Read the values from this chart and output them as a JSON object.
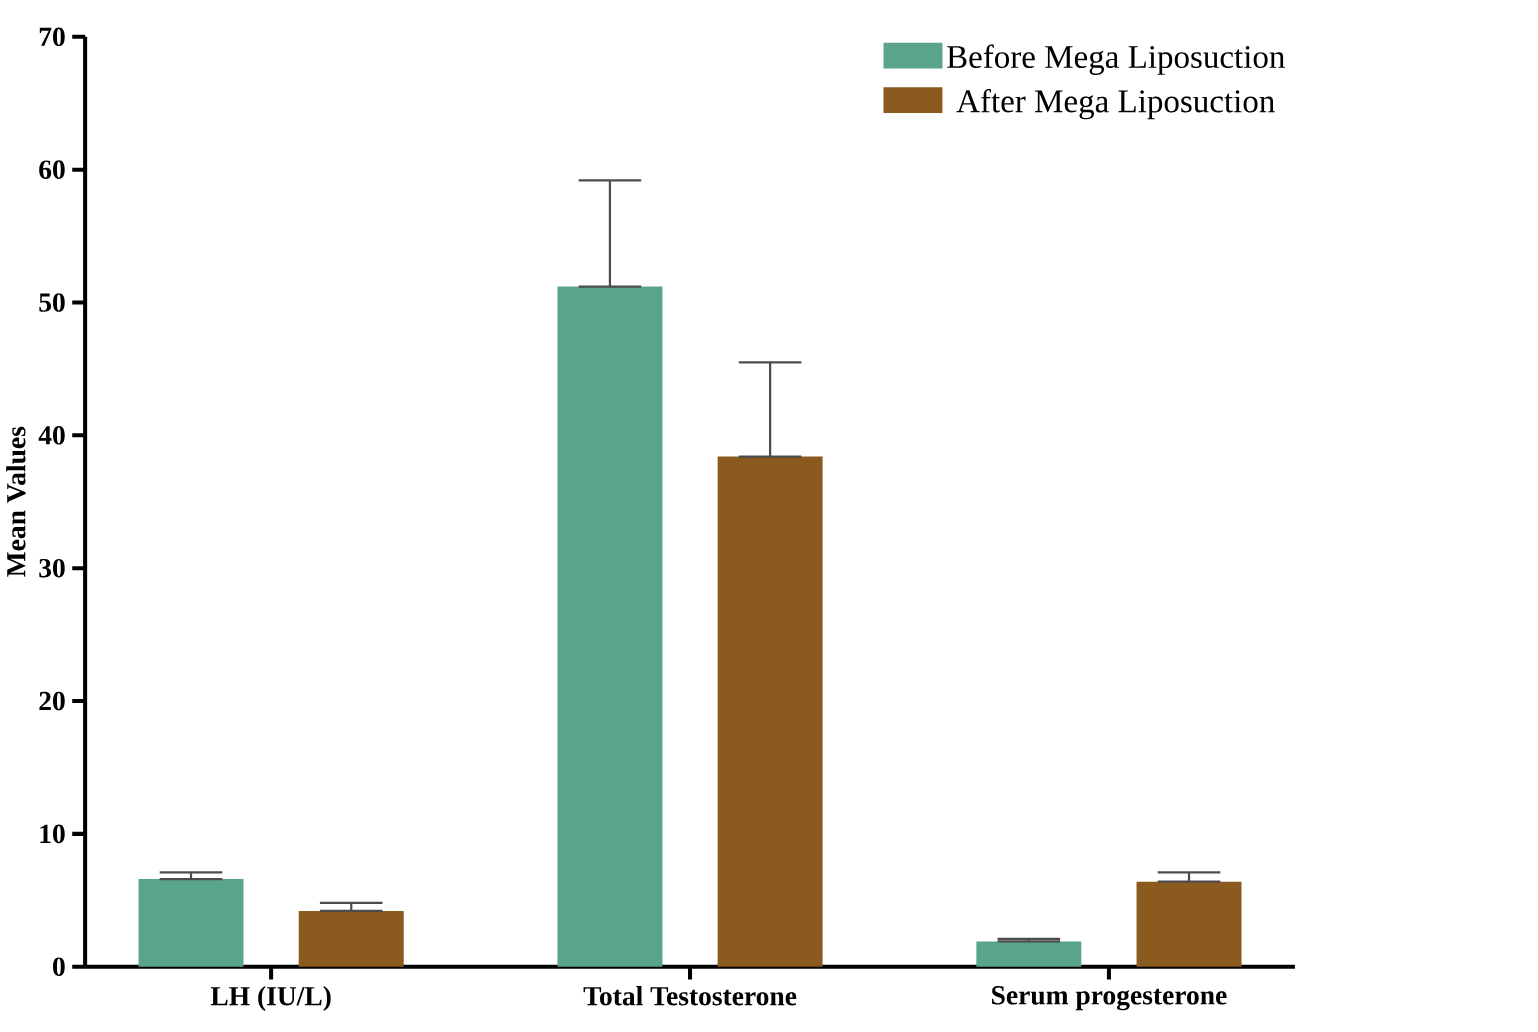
{
  "chart_data": {
    "type": "bar",
    "ylabel": "Mean Values",
    "categories": [
      "LH (IU/L)",
      "Total Testosterone",
      "Serum progesterone"
    ],
    "series": [
      {
        "name": "Before Mega Liposuction",
        "color": "#5aa58a",
        "values": [
          6.6,
          51.2,
          1.9
        ],
        "errors": [
          [
            6.6,
            7.1
          ],
          [
            51.2,
            59.2
          ],
          [
            1.9,
            2.1
          ]
        ]
      },
      {
        "name": "After Mega Liposuction",
        "color": "#8b5a1e",
        "values": [
          4.2,
          38.4,
          6.4
        ],
        "errors": [
          [
            4.2,
            4.8
          ],
          [
            38.4,
            45.5
          ],
          [
            6.4,
            7.1
          ]
        ]
      }
    ],
    "ylim": [
      0,
      70
    ],
    "yticks": [
      0,
      10,
      20,
      30,
      40,
      50,
      60,
      70
    ],
    "grid": false,
    "legend": "top right"
  }
}
